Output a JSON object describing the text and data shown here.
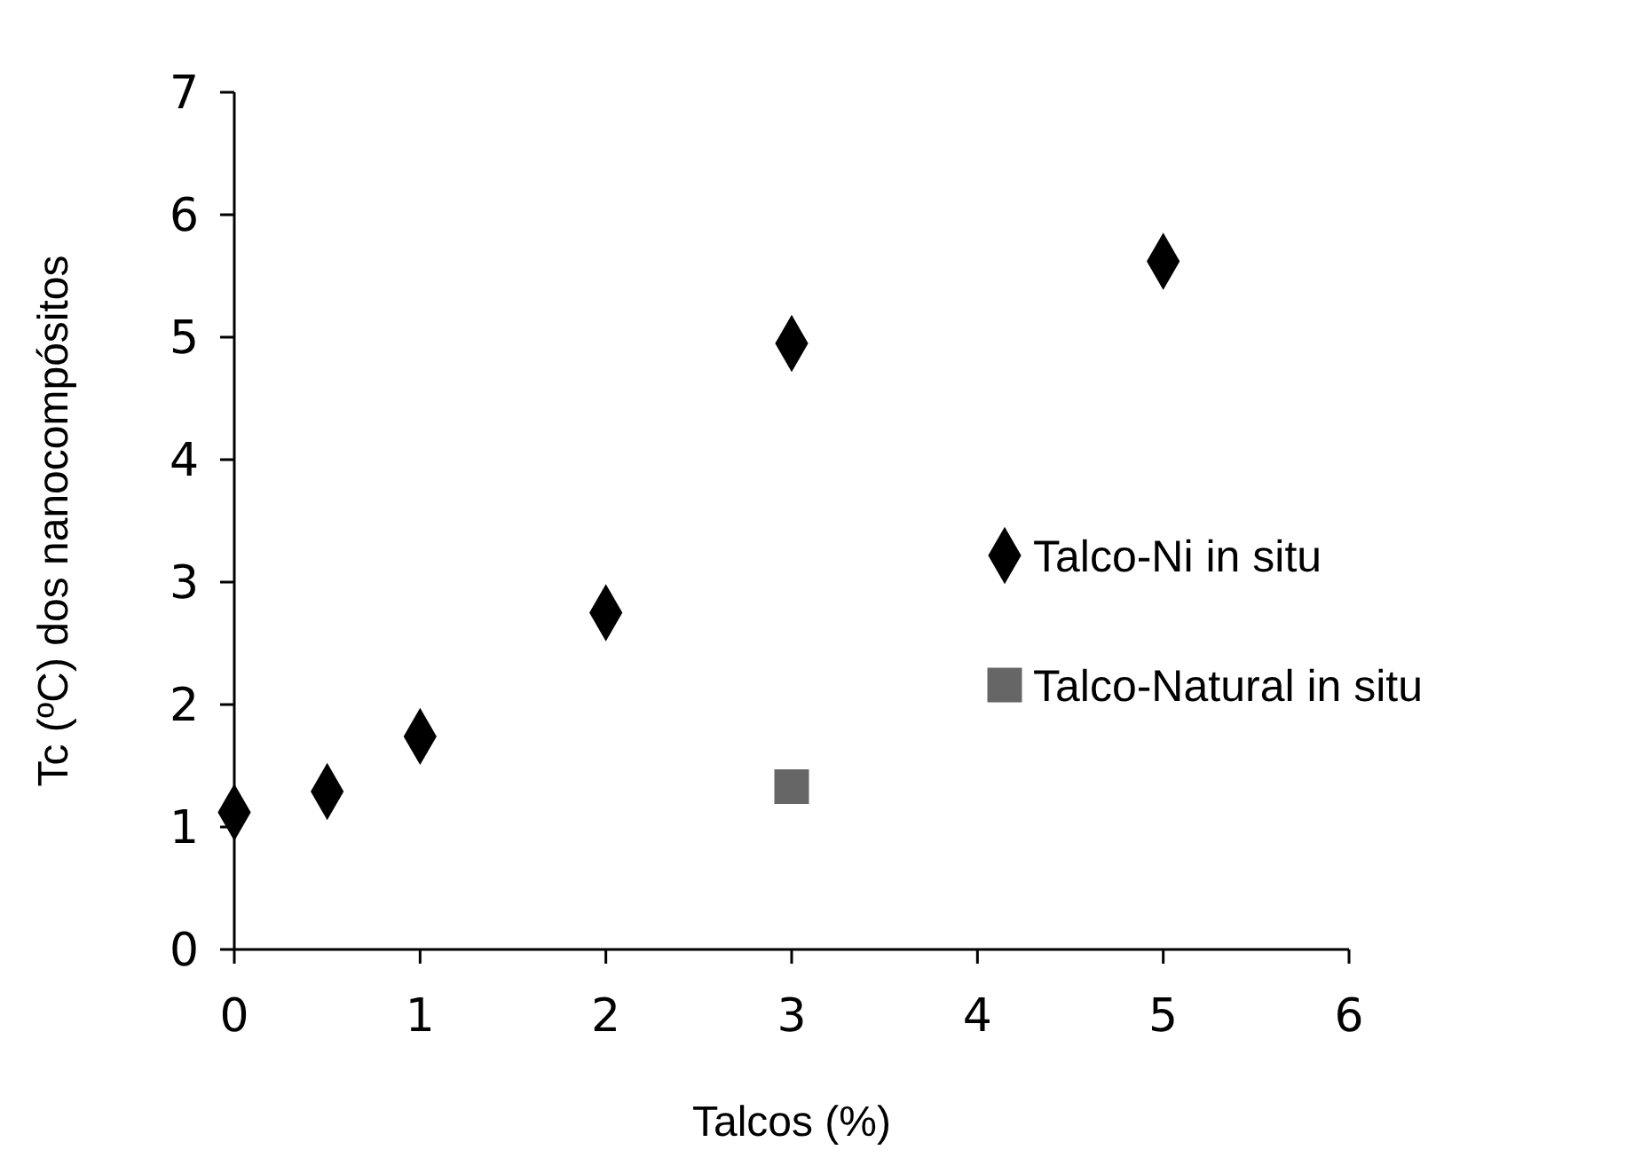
{
  "chart_data": {
    "type": "scatter",
    "xlabel": "Talcos (%)",
    "ylabel": "Tc (ºC) dos nanocompósitos",
    "xlim": [
      0,
      6
    ],
    "xticks": [
      0,
      1,
      2,
      3,
      4,
      5,
      6
    ],
    "ylim": [
      0,
      7
    ],
    "yticks": [
      0,
      1,
      2,
      3,
      4,
      5,
      6,
      7
    ],
    "grid": false,
    "legend": "right",
    "series": [
      {
        "name": "Talco-Ni in situ",
        "color": "#000000",
        "marker": "diamond",
        "x": [
          0,
          0.5,
          1,
          2,
          3,
          5
        ],
        "values": [
          1.12,
          1.29,
          1.74,
          2.75,
          4.95,
          5.62
        ]
      },
      {
        "name": "Talco-Natural in situ",
        "color": "#666666",
        "marker": "square",
        "x": [
          3
        ],
        "values": [
          1.33
        ]
      }
    ]
  }
}
